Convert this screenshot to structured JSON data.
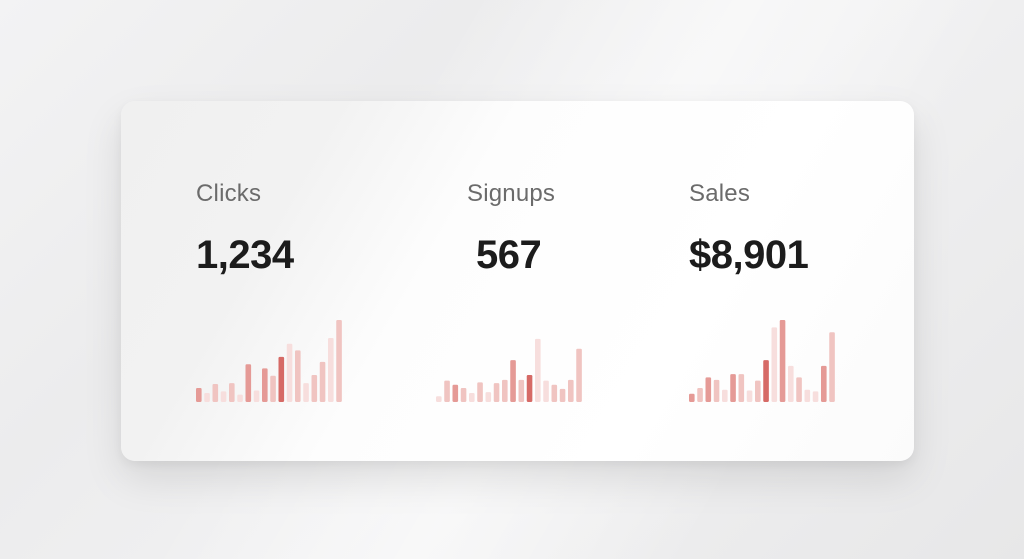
{
  "background_color": "#ececed",
  "card_color": "#ffffff",
  "accent_colors": [
    "#d66a66",
    "#e59a96",
    "#f0c4c1",
    "#f7dedd"
  ],
  "metrics": [
    {
      "label": "Clicks",
      "value": "1,234",
      "bars": [
        {
          "v": 0.17,
          "s": 1
        },
        {
          "v": 0.11,
          "s": 3
        },
        {
          "v": 0.22,
          "s": 2
        },
        {
          "v": 0.13,
          "s": 3
        },
        {
          "v": 0.23,
          "s": 2
        },
        {
          "v": 0.09,
          "s": 3
        },
        {
          "v": 0.46,
          "s": 1
        },
        {
          "v": 0.14,
          "s": 3
        },
        {
          "v": 0.41,
          "s": 1
        },
        {
          "v": 0.32,
          "s": 2
        },
        {
          "v": 0.55,
          "s": 0
        },
        {
          "v": 0.71,
          "s": 3
        },
        {
          "v": 0.63,
          "s": 2
        },
        {
          "v": 0.23,
          "s": 3
        },
        {
          "v": 0.33,
          "s": 2
        },
        {
          "v": 0.49,
          "s": 2
        },
        {
          "v": 0.78,
          "s": 3
        },
        {
          "v": 1.0,
          "s": 2
        }
      ]
    },
    {
      "label": "Signups",
      "value": "567",
      "bars": [
        {
          "v": 0.07,
          "s": 3
        },
        {
          "v": 0.26,
          "s": 2
        },
        {
          "v": 0.21,
          "s": 1
        },
        {
          "v": 0.17,
          "s": 2
        },
        {
          "v": 0.11,
          "s": 3
        },
        {
          "v": 0.24,
          "s": 2
        },
        {
          "v": 0.12,
          "s": 3
        },
        {
          "v": 0.23,
          "s": 2
        },
        {
          "v": 0.27,
          "s": 2
        },
        {
          "v": 0.51,
          "s": 1
        },
        {
          "v": 0.27,
          "s": 2
        },
        {
          "v": 0.33,
          "s": 0
        },
        {
          "v": 0.77,
          "s": 3
        },
        {
          "v": 0.26,
          "s": 3
        },
        {
          "v": 0.21,
          "s": 2
        },
        {
          "v": 0.16,
          "s": 2
        },
        {
          "v": 0.27,
          "s": 2
        },
        {
          "v": 0.65,
          "s": 2
        }
      ]
    },
    {
      "label": "Sales",
      "value": "$8,901",
      "bars": [
        {
          "v": 0.1,
          "s": 1
        },
        {
          "v": 0.17,
          "s": 2
        },
        {
          "v": 0.3,
          "s": 1
        },
        {
          "v": 0.27,
          "s": 2
        },
        {
          "v": 0.15,
          "s": 3
        },
        {
          "v": 0.34,
          "s": 1
        },
        {
          "v": 0.34,
          "s": 2
        },
        {
          "v": 0.14,
          "s": 3
        },
        {
          "v": 0.26,
          "s": 2
        },
        {
          "v": 0.51,
          "s": 0
        },
        {
          "v": 0.91,
          "s": 3
        },
        {
          "v": 1.0,
          "s": 1
        },
        {
          "v": 0.44,
          "s": 3
        },
        {
          "v": 0.3,
          "s": 2
        },
        {
          "v": 0.15,
          "s": 3
        },
        {
          "v": 0.13,
          "s": 3
        },
        {
          "v": 0.44,
          "s": 1
        },
        {
          "v": 0.85,
          "s": 2
        }
      ]
    }
  ]
}
